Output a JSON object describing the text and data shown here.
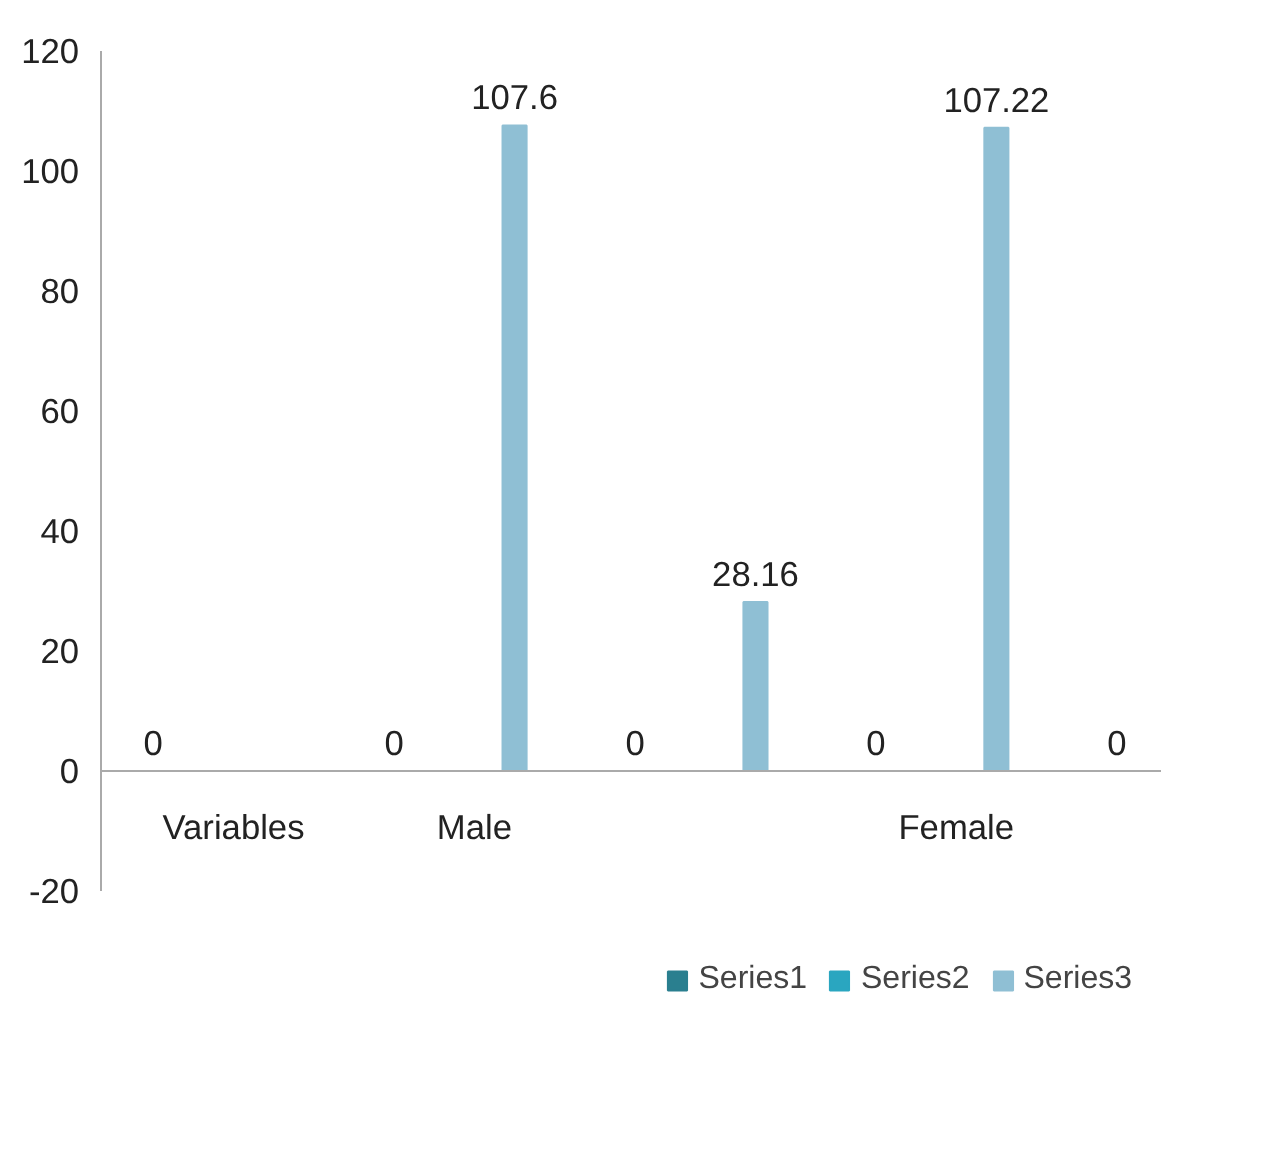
{
  "chart_data": {
    "type": "bar",
    "categories": [
      "Variables",
      "Male",
      null,
      "Female",
      null
    ],
    "series": [
      {
        "name": "Series1",
        "color": "#2a7f8f",
        "values": [
          0,
          0,
          0,
          0,
          0
        ]
      },
      {
        "name": "Series2",
        "color": "#2aa6c0",
        "values": [
          null,
          null,
          null,
          null,
          null
        ]
      },
      {
        "name": "Series3",
        "color": "#8fbfd4",
        "values": [
          null,
          107.6,
          28.16,
          107.22,
          null
        ]
      }
    ],
    "ylim": [
      -20,
      120
    ],
    "yticks": [
      -20,
      0,
      20,
      40,
      60,
      80,
      100,
      120
    ],
    "grid": false,
    "legend": "bottom",
    "data_labels": true
  }
}
